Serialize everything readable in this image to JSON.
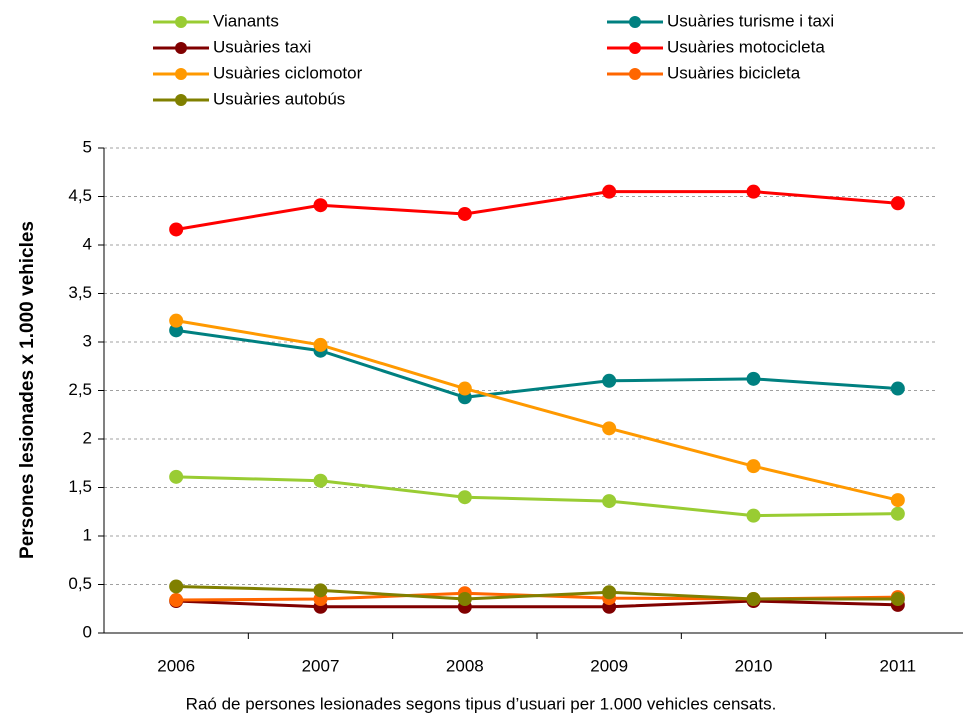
{
  "chart_data": {
    "type": "line",
    "y_label": "Persones lesionades x 1.000 vehicles",
    "caption": "Raó de persones lesionades segons tipus d’usuari per 1.000 vehicles censats.",
    "categories": [
      "2006",
      "2007",
      "2008",
      "2009",
      "2010",
      "2011"
    ],
    "series": [
      {
        "name": "Vianants",
        "color": "#99cc33",
        "values": [
          1.61,
          1.57,
          1.4,
          1.36,
          1.21,
          1.23
        ]
      },
      {
        "name": "Usuàries turisme i taxi",
        "color": "#008080",
        "values": [
          3.12,
          2.91,
          2.43,
          2.6,
          2.62,
          2.52
        ]
      },
      {
        "name": "Usuàries taxi",
        "color": "#800000",
        "values": [
          0.33,
          0.27,
          0.27,
          0.27,
          0.33,
          0.29
        ]
      },
      {
        "name": "Usuàries motocicleta",
        "color": "#ff0000",
        "values": [
          4.16,
          4.41,
          4.32,
          4.55,
          4.55,
          4.43
        ]
      },
      {
        "name": "Usuàries ciclomotor",
        "color": "#ff9900",
        "values": [
          3.22,
          2.97,
          2.52,
          2.11,
          1.72,
          1.37
        ]
      },
      {
        "name": "Usuàries bicicleta",
        "color": "#ff6600",
        "values": [
          0.34,
          0.35,
          0.41,
          0.36,
          0.35,
          0.37
        ]
      },
      {
        "name": "Usuàries autobús",
        "color": "#808000",
        "values": [
          0.48,
          0.44,
          0.35,
          0.42,
          0.35,
          0.35
        ]
      }
    ],
    "ylim": [
      0,
      5
    ],
    "yticks": [
      0,
      {
        "value": 0.5,
        "label": "0,5"
      },
      1,
      {
        "value": 1.5,
        "label": "1,5"
      },
      2,
      {
        "value": 2.5,
        "label": "2,5"
      },
      3,
      {
        "value": 3.5,
        "label": "3,5"
      },
      4,
      {
        "value": 4.5,
        "label": "4,5"
      },
      5
    ],
    "grid": true
  }
}
